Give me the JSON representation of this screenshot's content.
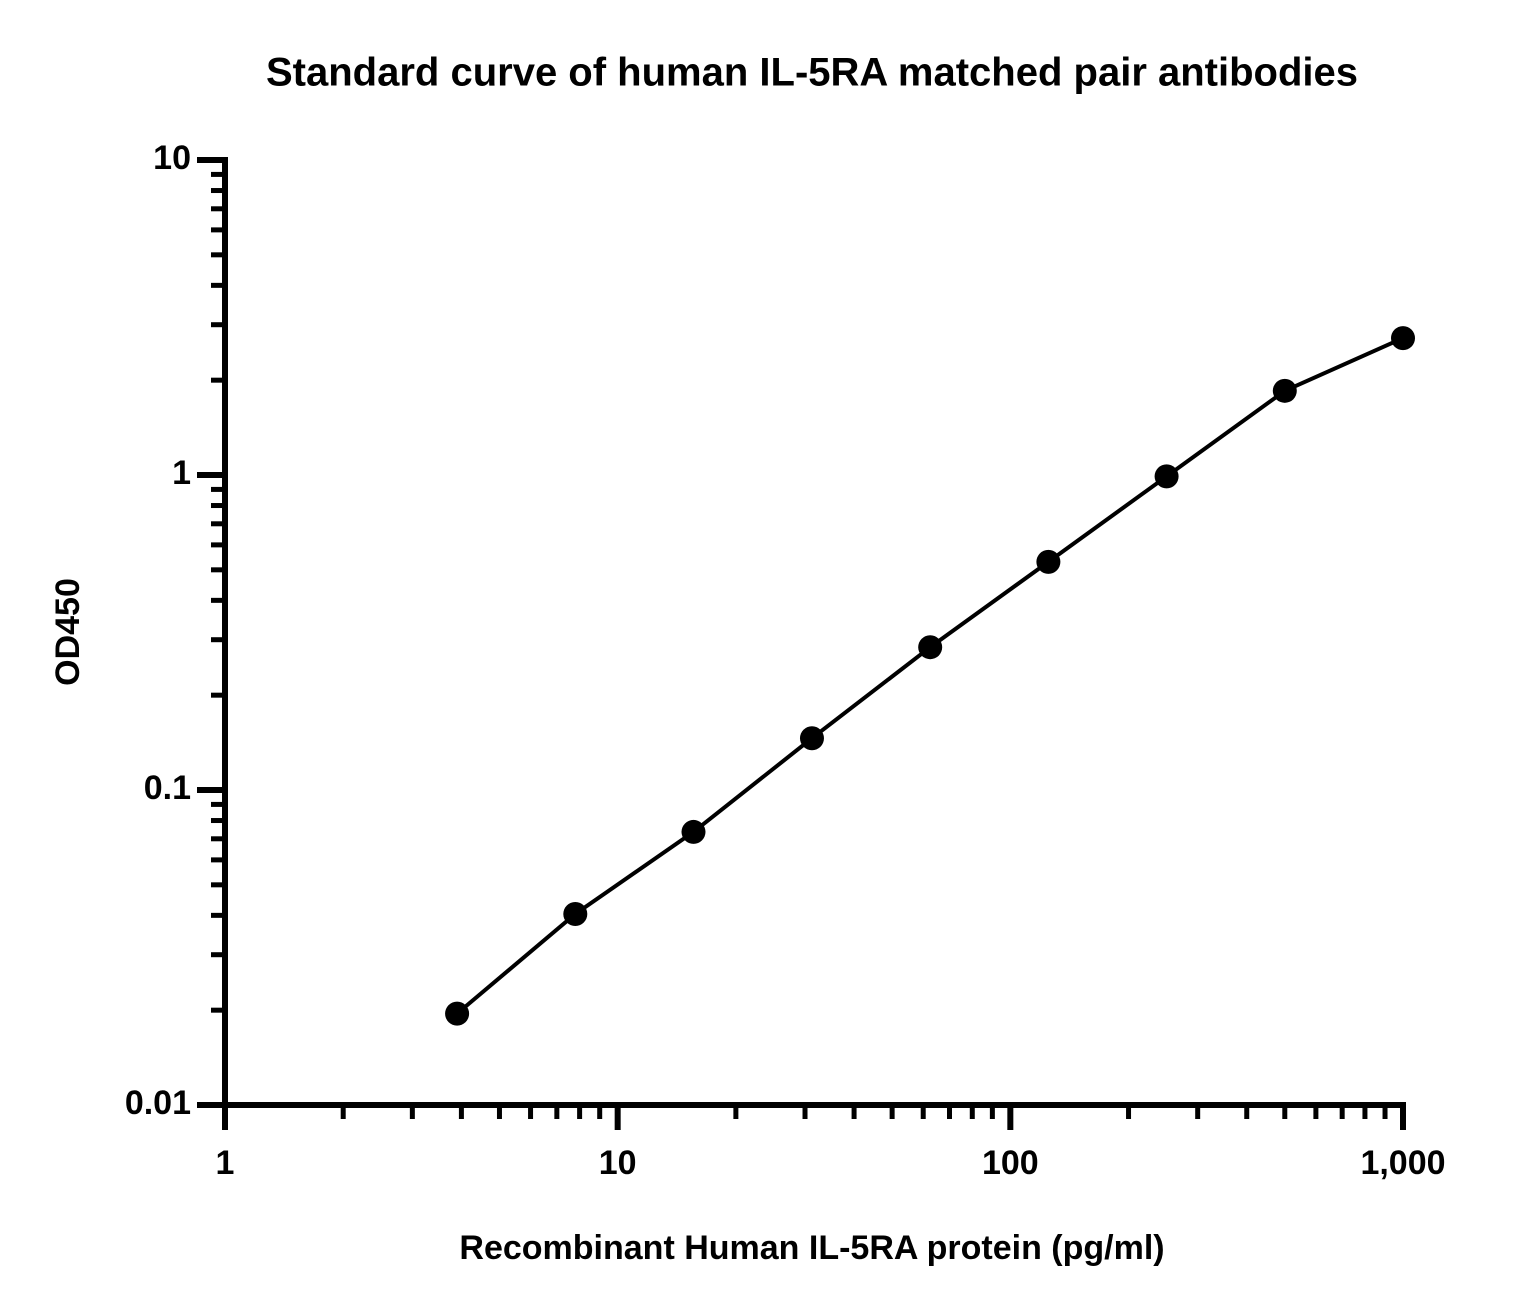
{
  "chart_data": {
    "type": "scatter",
    "title": "Standard curve of human IL-5RA matched pair antibodies",
    "x_label": "Recombinant Human IL-5RA protein (pg/ml)",
    "y_label": "OD450",
    "x_scale": "log",
    "y_scale": "log",
    "xlim": [
      1,
      1000
    ],
    "ylim": [
      0.01,
      10
    ],
    "xticks": [
      1,
      10,
      100,
      {
        "value": 1000,
        "label": "1,000"
      }
    ],
    "yticks": [
      0.01,
      0.1,
      1,
      10
    ],
    "minor_ticks": true,
    "connect_line": true,
    "series": [
      {
        "color": "#000000",
        "x": [
          3.9,
          7.8,
          15.6,
          31.25,
          62.5,
          125,
          250,
          500,
          1000
        ],
        "values": [
          0.0195,
          0.0404,
          0.0736,
          0.146,
          0.284,
          0.53,
          0.99,
          1.85,
          2.72
        ]
      }
    ]
  }
}
